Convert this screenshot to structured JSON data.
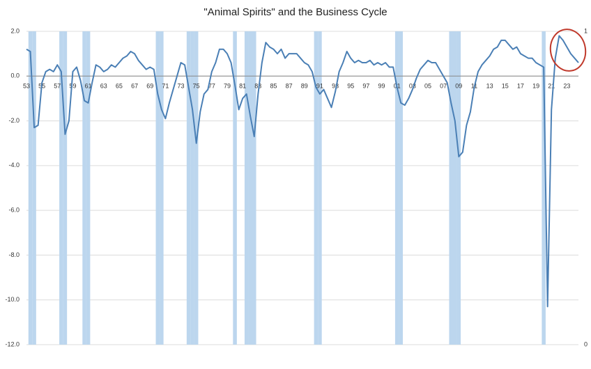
{
  "chart_data": {
    "type": "line",
    "title": "\"Animal Spirits\" and the Business Cycle",
    "categories": [
      "53",
      null,
      null,
      null,
      "55",
      null,
      null,
      null,
      "57",
      null,
      null,
      null,
      "59",
      null,
      null,
      null,
      "61",
      null,
      null,
      null,
      "63",
      null,
      null,
      null,
      "65",
      null,
      null,
      null,
      "67",
      null,
      null,
      null,
      "69",
      null,
      null,
      null,
      "71",
      null,
      null,
      null,
      "73",
      null,
      null,
      null,
      "75",
      null,
      null,
      null,
      "77",
      null,
      null,
      null,
      "79",
      null,
      null,
      null,
      "81",
      null,
      null,
      null,
      "83",
      null,
      null,
      null,
      "85",
      null,
      null,
      null,
      "87",
      null,
      null,
      null,
      "89",
      null,
      null,
      null,
      "91",
      null,
      null,
      null,
      "93",
      null,
      null,
      null,
      "95",
      null,
      null,
      null,
      "97",
      null,
      null,
      null,
      "99",
      null,
      null,
      null,
      "01",
      null,
      null,
      null,
      "03",
      null,
      null,
      null,
      "05",
      null,
      null,
      null,
      "07",
      null,
      null,
      null,
      "09",
      null,
      null,
      null,
      "11",
      null,
      null,
      null,
      "13",
      null,
      null,
      null,
      "15",
      null,
      null,
      null,
      "17",
      null,
      null,
      null,
      "19",
      null,
      null,
      null,
      "21",
      null,
      null,
      null,
      "23",
      null,
      null,
      null
    ],
    "series": [
      {
        "type": "bar",
        "axis": "y2",
        "color": "#bcd6ee",
        "values": [
          0,
          1,
          1,
          0,
          0,
          0,
          0,
          0,
          0,
          1,
          1,
          0,
          0,
          0,
          0,
          1,
          1,
          0,
          0,
          0,
          0,
          0,
          0,
          0,
          0,
          0,
          0,
          0,
          0,
          0,
          0,
          0,
          0,
          0,
          1,
          1,
          0,
          0,
          0,
          0,
          0,
          0,
          1,
          1,
          1,
          0,
          0,
          0,
          0,
          0,
          0,
          0,
          0,
          0,
          1,
          0,
          0,
          1,
          1,
          1,
          0,
          0,
          0,
          0,
          0,
          0,
          0,
          0,
          0,
          0,
          0,
          0,
          0,
          0,
          0,
          1,
          1,
          0,
          0,
          0,
          0,
          0,
          0,
          0,
          0,
          0,
          0,
          0,
          0,
          0,
          0,
          0,
          0,
          0,
          0,
          0,
          1,
          1,
          0,
          0,
          0,
          0,
          0,
          0,
          0,
          0,
          0,
          0,
          0,
          0,
          1,
          1,
          1,
          0,
          0,
          0,
          0,
          0,
          0,
          0,
          0,
          0,
          0,
          0,
          0,
          0,
          0,
          0,
          0,
          0,
          0,
          0,
          0,
          0,
          1,
          0,
          0,
          0,
          0,
          0,
          0,
          0,
          0,
          0
        ]
      },
      {
        "type": "line",
        "color": "#4a7fb5",
        "values": [
          1.2,
          1.1,
          -2.3,
          -2.2,
          -0.3,
          0.2,
          0.3,
          0.2,
          0.5,
          0.2,
          -2.6,
          -2.0,
          0.2,
          0.4,
          -0.2,
          -1.1,
          -1.2,
          -0.3,
          0.5,
          0.4,
          0.2,
          0.3,
          0.5,
          0.4,
          0.6,
          0.8,
          0.9,
          1.1,
          1.0,
          0.7,
          0.5,
          0.3,
          0.4,
          0.3,
          -0.8,
          -1.5,
          -1.9,
          -1.2,
          -0.6,
          0.0,
          0.6,
          0.5,
          -0.5,
          -1.5,
          -3.0,
          -1.6,
          -0.8,
          -0.6,
          0.2,
          0.6,
          1.2,
          1.2,
          1.0,
          0.6,
          -0.4,
          -1.5,
          -1.0,
          -0.8,
          -1.8,
          -2.7,
          -0.8,
          0.6,
          1.5,
          1.3,
          1.2,
          1.0,
          1.2,
          0.8,
          1.0,
          1.0,
          1.0,
          0.8,
          0.6,
          0.5,
          0.2,
          -0.5,
          -0.8,
          -0.6,
          -1.0,
          -1.4,
          -0.7,
          0.2,
          0.6,
          1.1,
          0.8,
          0.6,
          0.7,
          0.6,
          0.6,
          0.7,
          0.5,
          0.6,
          0.5,
          0.6,
          0.4,
          0.4,
          -0.5,
          -1.2,
          -1.3,
          -1.0,
          -0.6,
          -0.1,
          0.3,
          0.5,
          0.7,
          0.6,
          0.6,
          0.3,
          0.0,
          -0.3,
          -1.2,
          -2.0,
          -3.6,
          -3.4,
          -2.2,
          -1.6,
          -0.5,
          0.2,
          0.5,
          0.7,
          0.9,
          1.2,
          1.3,
          1.6,
          1.6,
          1.4,
          1.2,
          1.3,
          1.0,
          0.9,
          0.8,
          0.8,
          0.6,
          0.5,
          0.4,
          -10.3,
          -1.5,
          0.8,
          1.8,
          1.6,
          1.3,
          1.0,
          0.8,
          0.6
        ]
      }
    ],
    "ylim": [
      -12,
      2
    ],
    "yticks": [
      {
        "value": 2,
        "label": "2.0"
      },
      {
        "value": 0,
        "label": "0.0"
      },
      {
        "value": -2,
        "label": "-2.0"
      },
      {
        "value": -4,
        "label": "-4.0"
      },
      {
        "value": -6,
        "label": "-6.0"
      },
      {
        "value": -8,
        "label": "-8.0"
      },
      {
        "value": -10,
        "label": "-10.0"
      },
      {
        "value": -12,
        "label": "-12.0"
      }
    ],
    "y2lim": [
      0,
      1
    ],
    "y2ticks": [
      0,
      1
    ],
    "grid": true
  }
}
